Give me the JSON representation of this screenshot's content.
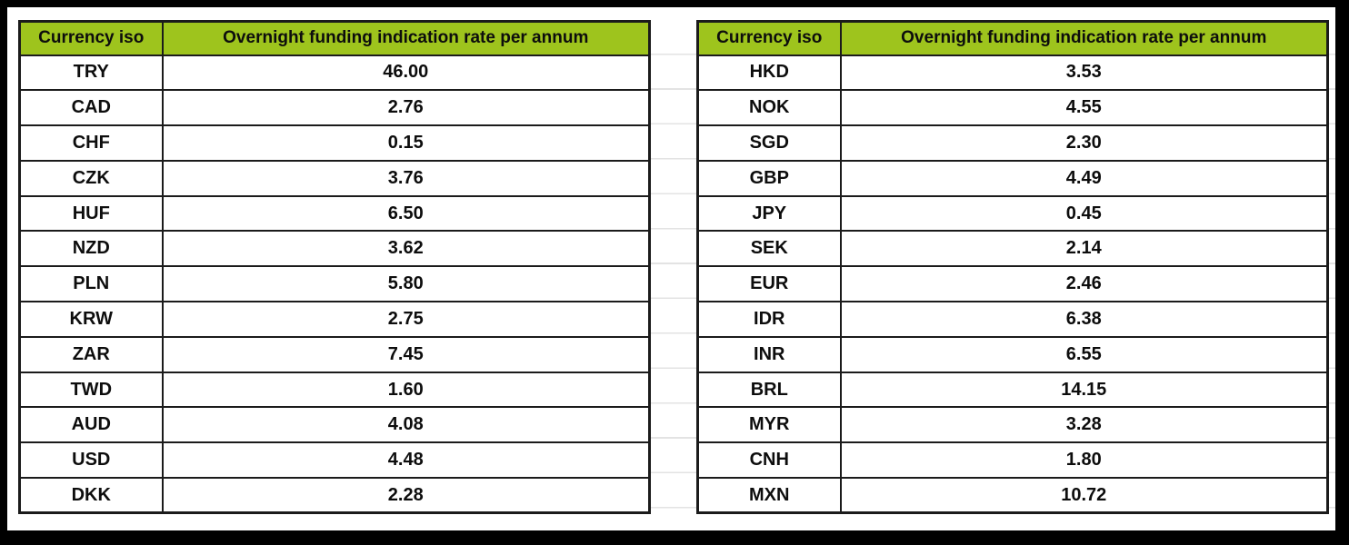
{
  "colors": {
    "header_bg": "#9ec41d",
    "table_border": "#1b1b1b",
    "gridline": "#e3e3e3",
    "frame": "#000000",
    "text": "#0d0d0d"
  },
  "tables": [
    {
      "headers": [
        "Currency iso",
        "Overnight funding indication rate per annum"
      ],
      "rows": [
        [
          "TRY",
          "46.00"
        ],
        [
          "CAD",
          "2.76"
        ],
        [
          "CHF",
          "0.15"
        ],
        [
          "CZK",
          "3.76"
        ],
        [
          "HUF",
          "6.50"
        ],
        [
          "NZD",
          "3.62"
        ],
        [
          "PLN",
          "5.80"
        ],
        [
          "KRW",
          "2.75"
        ],
        [
          "ZAR",
          "7.45"
        ],
        [
          "TWD",
          "1.60"
        ],
        [
          "AUD",
          "4.08"
        ],
        [
          "USD",
          "4.48"
        ],
        [
          "DKK",
          "2.28"
        ]
      ]
    },
    {
      "headers": [
        "Currency iso",
        "Overnight funding indication rate per annum"
      ],
      "rows": [
        [
          "HKD",
          "3.53"
        ],
        [
          "NOK",
          "4.55"
        ],
        [
          "SGD",
          "2.30"
        ],
        [
          "GBP",
          "4.49"
        ],
        [
          "JPY",
          "0.45"
        ],
        [
          "SEK",
          "2.14"
        ],
        [
          "EUR",
          "2.46"
        ],
        [
          "IDR",
          "6.38"
        ],
        [
          "INR",
          "6.55"
        ],
        [
          "BRL",
          "14.15"
        ],
        [
          "MYR",
          "3.28"
        ],
        [
          "CNH",
          "1.80"
        ],
        [
          "MXN",
          "10.72"
        ]
      ]
    }
  ]
}
